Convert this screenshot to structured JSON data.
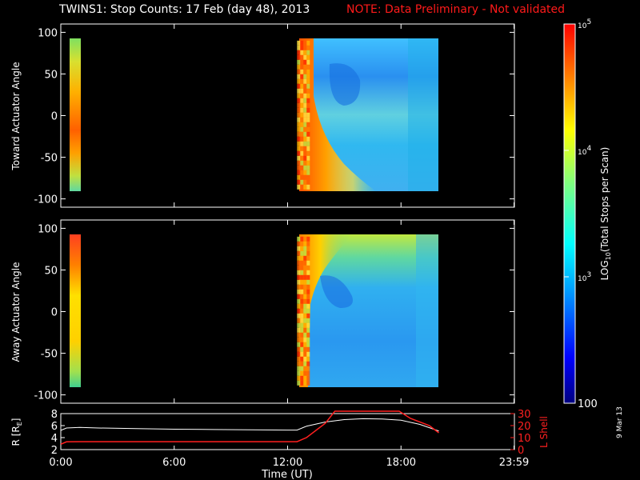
{
  "title_main": "TWINS1: Stop Counts: 17 Feb (day  48), 2013",
  "title_note": "NOTE: Data Preliminary - Not validated",
  "stamp": "9 Mar 13",
  "colors": {
    "background": "#000000",
    "axes": "#ffffff",
    "note": "#ff1a1a",
    "l_shell": "#ff2020",
    "radius": "#ffffff"
  },
  "chart_data": [
    {
      "type": "heatmap",
      "name": "toward-panel",
      "ylabel": "Toward Actuator Angle",
      "ylim": [
        -110,
        110
      ],
      "yticks": [
        100,
        50,
        0,
        -50,
        -100
      ],
      "xlim": [
        0,
        24
      ],
      "angle_range": [
        -88,
        90
      ],
      "blocks": [
        {
          "start_hour": 0.0,
          "end_hour": 0.5
        },
        {
          "start_hour": 12.5,
          "end_hour": 19.5
        }
      ]
    },
    {
      "type": "heatmap",
      "name": "away-panel",
      "ylabel": "Away Actuator Angle",
      "ylim": [
        -110,
        110
      ],
      "yticks": [
        100,
        50,
        0,
        -50,
        -100
      ],
      "xlim": [
        0,
        24
      ],
      "angle_range": [
        -88,
        90
      ],
      "blocks": [
        {
          "start_hour": 0.0,
          "end_hour": 0.5
        },
        {
          "start_hour": 12.5,
          "end_hour": 19.5
        }
      ]
    },
    {
      "type": "line",
      "name": "orbit-panel",
      "xlabel": "Time (UT)",
      "xticks": [
        {
          "value": 0,
          "label": "0:00"
        },
        {
          "value": 6,
          "label": "6:00"
        },
        {
          "value": 12,
          "label": "12:00"
        },
        {
          "value": 18,
          "label": "18:00"
        },
        {
          "value": 23.98,
          "label": "23:59"
        }
      ],
      "xlim": [
        0,
        24
      ],
      "left_axis": {
        "label": "R [R",
        "label_sub": "E",
        "label_end": "]",
        "ylim": [
          2,
          8
        ],
        "ticks": [
          8,
          6,
          4,
          2
        ]
      },
      "right_axis": {
        "label": "L Shell",
        "ylim": [
          0,
          30
        ],
        "ticks": [
          30,
          20,
          10,
          0
        ]
      },
      "series": [
        {
          "name": "R [RE]",
          "axis": "left",
          "x": [
            0,
            0.3,
            1,
            2,
            4,
            6,
            8,
            10,
            12,
            12.5,
            13,
            14,
            15,
            16,
            17,
            18,
            19,
            20
          ],
          "y": [
            5.2,
            5.6,
            5.7,
            5.6,
            5.5,
            5.4,
            5.35,
            5.3,
            5.25,
            5.25,
            5.9,
            6.6,
            7.0,
            7.15,
            7.1,
            6.9,
            6.2,
            5.1
          ]
        },
        {
          "name": "L Shell",
          "axis": "right",
          "x": [
            0,
            0.3,
            1,
            6,
            12,
            12.5,
            13,
            14,
            14.5,
            17.9,
            18.5,
            19.5,
            20
          ],
          "y": [
            4.5,
            6.5,
            6.6,
            6.6,
            6.6,
            6.6,
            10,
            22,
            32,
            32,
            26,
            20,
            14
          ]
        }
      ]
    },
    {
      "type": "heatmap",
      "name": "colorbar",
      "label": "LOG",
      "label_sub": "10",
      "label_rest": "(Total Stops per Scan)",
      "scale": "log",
      "range": [
        100,
        100000
      ],
      "ticks": [
        {
          "value": 100000,
          "label": "10",
          "sup": "5"
        },
        {
          "value": 10000,
          "label": "10",
          "sup": "4"
        },
        {
          "value": 1000,
          "label": "10",
          "sup": "3"
        },
        {
          "value": 100,
          "label": "100",
          "sup": ""
        }
      ]
    }
  ]
}
